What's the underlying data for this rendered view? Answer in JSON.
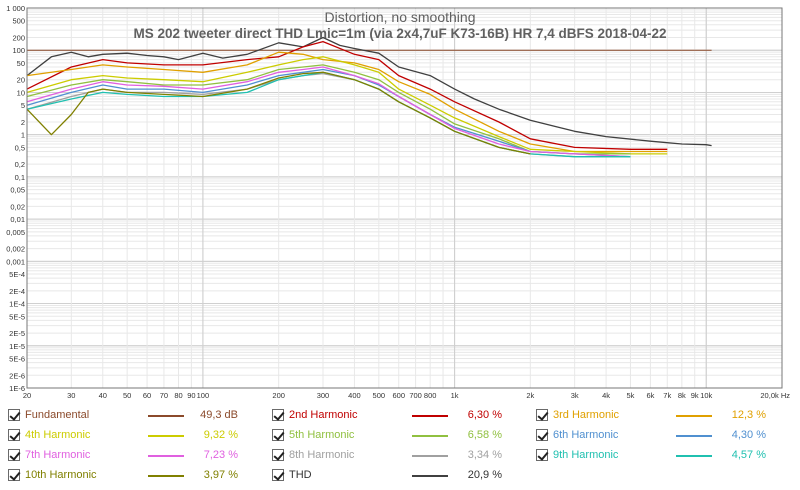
{
  "chart_data": {
    "type": "line",
    "title": "Distortion, no smoothing",
    "subtitle": "MS 202 tweeter direct THD Lmic=1m (via 2x4,7uF K73-16B) HR 7,4 dBFS 2018-04-22",
    "xlabel": "Hz",
    "x_scale": "log",
    "y_scale": "log",
    "xlim": [
      20,
      20000
    ],
    "ylim": [
      1e-06,
      1000
    ],
    "grid": true,
    "x_ticks": [
      {
        "v": 20,
        "t": "20"
      },
      {
        "v": 30,
        "t": "30"
      },
      {
        "v": 40,
        "t": "40"
      },
      {
        "v": 50,
        "t": "50"
      },
      {
        "v": 60,
        "t": "60"
      },
      {
        "v": 70,
        "t": "70"
      },
      {
        "v": 80,
        "t": "80"
      },
      {
        "v": 90,
        "t": "90"
      },
      {
        "v": 100,
        "t": "100"
      },
      {
        "v": 200,
        "t": "200"
      },
      {
        "v": 300,
        "t": "300"
      },
      {
        "v": 400,
        "t": "400"
      },
      {
        "v": 500,
        "t": "500"
      },
      {
        "v": 600,
        "t": "600"
      },
      {
        "v": 700,
        "t": "700"
      },
      {
        "v": 800,
        "t": "800"
      },
      {
        "v": 1000,
        "t": "1k"
      },
      {
        "v": 2000,
        "t": "2k"
      },
      {
        "v": 3000,
        "t": "3k"
      },
      {
        "v": 4000,
        "t": "4k"
      },
      {
        "v": 5000,
        "t": "5k"
      },
      {
        "v": 6000,
        "t": "6k"
      },
      {
        "v": 7000,
        "t": "7k"
      },
      {
        "v": 8000,
        "t": "8k"
      },
      {
        "v": 9000,
        "t": "9k"
      },
      {
        "v": 10000,
        "t": "10k"
      },
      {
        "v": 20000,
        "t": "20,0k Hz"
      }
    ],
    "y_ticks": [
      {
        "v": 1000,
        "t": "1 000"
      },
      {
        "v": 500,
        "t": "500"
      },
      {
        "v": 200,
        "t": "200"
      },
      {
        "v": 100,
        "t": "100"
      },
      {
        "v": 50,
        "t": "50"
      },
      {
        "v": 20,
        "t": "20"
      },
      {
        "v": 10,
        "t": "10"
      },
      {
        "v": 5,
        "t": "5"
      },
      {
        "v": 2,
        "t": "2"
      },
      {
        "v": 1,
        "t": "1"
      },
      {
        "v": 0.5,
        "t": "0,5"
      },
      {
        "v": 0.2,
        "t": "0,2"
      },
      {
        "v": 0.1,
        "t": "0,1"
      },
      {
        "v": 0.05,
        "t": "0,05"
      },
      {
        "v": 0.02,
        "t": "0,02"
      },
      {
        "v": 0.01,
        "t": "0,01"
      },
      {
        "v": 0.005,
        "t": "0,005"
      },
      {
        "v": 0.002,
        "t": "0,002"
      },
      {
        "v": 0.001,
        "t": "0,001"
      },
      {
        "v": 0.0005,
        "t": "5E-4"
      },
      {
        "v": 0.0002,
        "t": "2E-4"
      },
      {
        "v": 0.0001,
        "t": "1E-4"
      },
      {
        "v": 5e-05,
        "t": "5E-5"
      },
      {
        "v": 2e-05,
        "t": "2E-5"
      },
      {
        "v": 1e-05,
        "t": "1E-5"
      },
      {
        "v": 5e-06,
        "t": "5E-6"
      },
      {
        "v": 2e-06,
        "t": "2E-6"
      },
      {
        "v": 1e-06,
        "t": "1E-6"
      }
    ],
    "series": [
      {
        "name": "Fundamental",
        "color": "#8b4a2b",
        "legend_value": "49,3 dB",
        "x": [
          20,
          10500
        ],
        "y": [
          100,
          100
        ]
      },
      {
        "name": "THD",
        "color": "#404040",
        "legend_value": "20,9 %",
        "x": [
          20,
          25,
          30,
          35,
          40,
          50,
          60,
          70,
          80,
          100,
          120,
          150,
          200,
          250,
          300,
          350,
          400,
          500,
          600,
          800,
          1000,
          1200,
          1500,
          2000,
          3000,
          4000,
          6000,
          8000,
          10000,
          10500
        ],
        "y": [
          25,
          70,
          90,
          70,
          80,
          85,
          75,
          70,
          60,
          85,
          65,
          80,
          150,
          120,
          200,
          130,
          110,
          85,
          40,
          25,
          12,
          7,
          4,
          2.2,
          1.2,
          0.9,
          0.7,
          0.6,
          0.58,
          0.55
        ]
      },
      {
        "name": "2nd Harmonic",
        "color": "#c00000",
        "legend_value": "6,30 %",
        "x": [
          20,
          30,
          40,
          50,
          70,
          100,
          150,
          200,
          250,
          300,
          400,
          500,
          600,
          800,
          1000,
          1500,
          2000,
          3000,
          5000,
          7000
        ],
        "y": [
          12,
          40,
          60,
          50,
          45,
          45,
          60,
          70,
          120,
          160,
          80,
          60,
          25,
          12,
          6,
          2,
          0.8,
          0.5,
          0.45,
          0.45
        ]
      },
      {
        "name": "3rd Harmonic",
        "color": "#e0a000",
        "legend_value": "12,3 %",
        "x": [
          20,
          30,
          40,
          50,
          70,
          100,
          150,
          200,
          250,
          300,
          400,
          500,
          600,
          800,
          1000,
          1500,
          2000,
          3000,
          5000,
          7000
        ],
        "y": [
          25,
          35,
          45,
          40,
          35,
          30,
          45,
          90,
          80,
          60,
          50,
          35,
          18,
          9,
          4,
          1.2,
          0.6,
          0.4,
          0.4,
          0.4
        ]
      },
      {
        "name": "4th Harmonic",
        "color": "#cccc00",
        "legend_value": "9,32 %",
        "x": [
          20,
          30,
          40,
          50,
          70,
          100,
          150,
          200,
          250,
          300,
          400,
          500,
          600,
          800,
          1000,
          1500,
          2000,
          3000,
          5000,
          7000
        ],
        "y": [
          10,
          20,
          25,
          22,
          20,
          18,
          30,
          45,
          60,
          70,
          45,
          30,
          12,
          5,
          2.5,
          0.9,
          0.45,
          0.4,
          0.35,
          0.35
        ]
      },
      {
        "name": "5th Harmonic",
        "color": "#90c040",
        "legend_value": "6,58 %",
        "x": [
          20,
          30,
          40,
          50,
          70,
          100,
          150,
          200,
          250,
          300,
          400,
          500,
          600,
          800,
          1000,
          1500,
          2000,
          3000,
          5000
        ],
        "y": [
          8,
          15,
          20,
          18,
          15,
          15,
          20,
          35,
          40,
          45,
          30,
          20,
          10,
          4,
          1.8,
          0.8,
          0.4,
          0.35,
          0.35
        ]
      },
      {
        "name": "6th Harmonic",
        "color": "#5090d0",
        "legend_value": "4,30 %",
        "x": [
          20,
          30,
          40,
          50,
          70,
          100,
          150,
          200,
          250,
          300,
          400,
          500,
          600,
          800,
          1000,
          1500,
          2000,
          3000,
          5000
        ],
        "y": [
          5,
          10,
          15,
          12,
          12,
          10,
          15,
          25,
          30,
          35,
          25,
          15,
          8,
          3,
          1.5,
          0.7,
          0.4,
          0.35,
          0.3
        ]
      },
      {
        "name": "7th Harmonic",
        "color": "#e060e0",
        "legend_value": "7,23 %",
        "x": [
          20,
          30,
          40,
          50,
          70,
          100,
          150,
          200,
          250,
          300,
          400,
          500,
          600,
          800,
          1000,
          1500,
          2000,
          3000,
          5000
        ],
        "y": [
          6,
          12,
          18,
          15,
          14,
          12,
          18,
          30,
          35,
          40,
          25,
          16,
          8,
          3,
          1.4,
          0.6,
          0.4,
          0.35,
          0.3
        ]
      },
      {
        "name": "8th Harmonic",
        "color": "#a0a0a0",
        "legend_value": "3,34 %",
        "x": [
          20,
          30,
          40,
          50,
          70,
          100,
          150,
          200,
          250,
          300,
          400,
          500,
          600,
          800,
          1000,
          1500,
          2000,
          3000,
          5000
        ],
        "y": [
          4,
          8,
          12,
          10,
          10,
          9,
          12,
          20,
          25,
          28,
          20,
          12,
          6,
          2.5,
          1.2,
          0.5,
          0.35,
          0.3,
          0.3
        ]
      },
      {
        "name": "9th Harmonic",
        "color": "#20c0b0",
        "legend_value": "4,57 %",
        "x": [
          20,
          30,
          40,
          50,
          70,
          100,
          150,
          200,
          250,
          300,
          400,
          500,
          600,
          800,
          1000,
          1500,
          2000,
          3000,
          5000
        ],
        "y": [
          4,
          7,
          10,
          9,
          8,
          8,
          10,
          20,
          25,
          30,
          20,
          12,
          6,
          2.5,
          1.2,
          0.5,
          0.35,
          0.3,
          0.3
        ]
      },
      {
        "name": "10th Harmonic",
        "color": "#808000",
        "legend_value": "3,97 %",
        "x": [
          20,
          25,
          30,
          35,
          40,
          50,
          70,
          100,
          150,
          200,
          250,
          300,
          400,
          500,
          600,
          800,
          1000,
          1500,
          2000
        ],
        "y": [
          4,
          1,
          3,
          10,
          12,
          10,
          9,
          8,
          12,
          22,
          28,
          30,
          20,
          12,
          6,
          2.5,
          1.2,
          0.5,
          0.35
        ]
      }
    ]
  }
}
